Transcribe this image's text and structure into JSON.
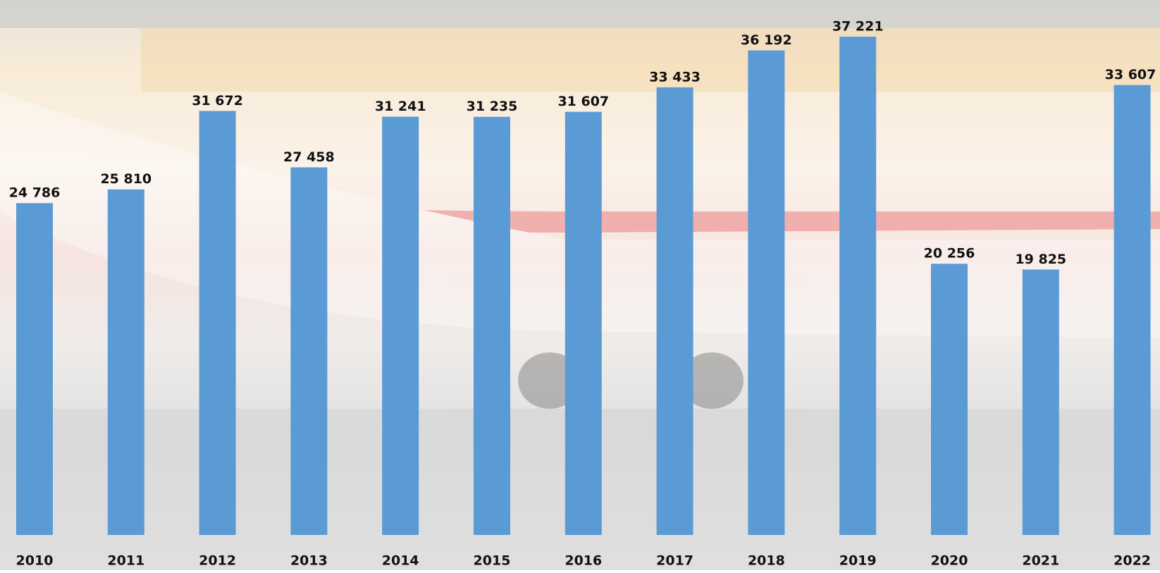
{
  "chart_data": {
    "type": "bar",
    "categories": [
      "2010",
      "2011",
      "2012",
      "2013",
      "2014",
      "2015",
      "2016",
      "2017",
      "2018",
      "2019",
      "2020",
      "2021",
      "2022"
    ],
    "values": [
      24786,
      25810,
      31672,
      27458,
      31241,
      31235,
      31607,
      33433,
      36192,
      37221,
      20256,
      19825,
      33607
    ],
    "value_labels": [
      "24 786",
      "25 810",
      "31 672",
      "27 458",
      "31 241",
      "31 235",
      "31 607",
      "33 433",
      "36 192",
      "37 221",
      "20 256",
      "19 825",
      "33 607"
    ],
    "color": "#5b9bd5"
  }
}
